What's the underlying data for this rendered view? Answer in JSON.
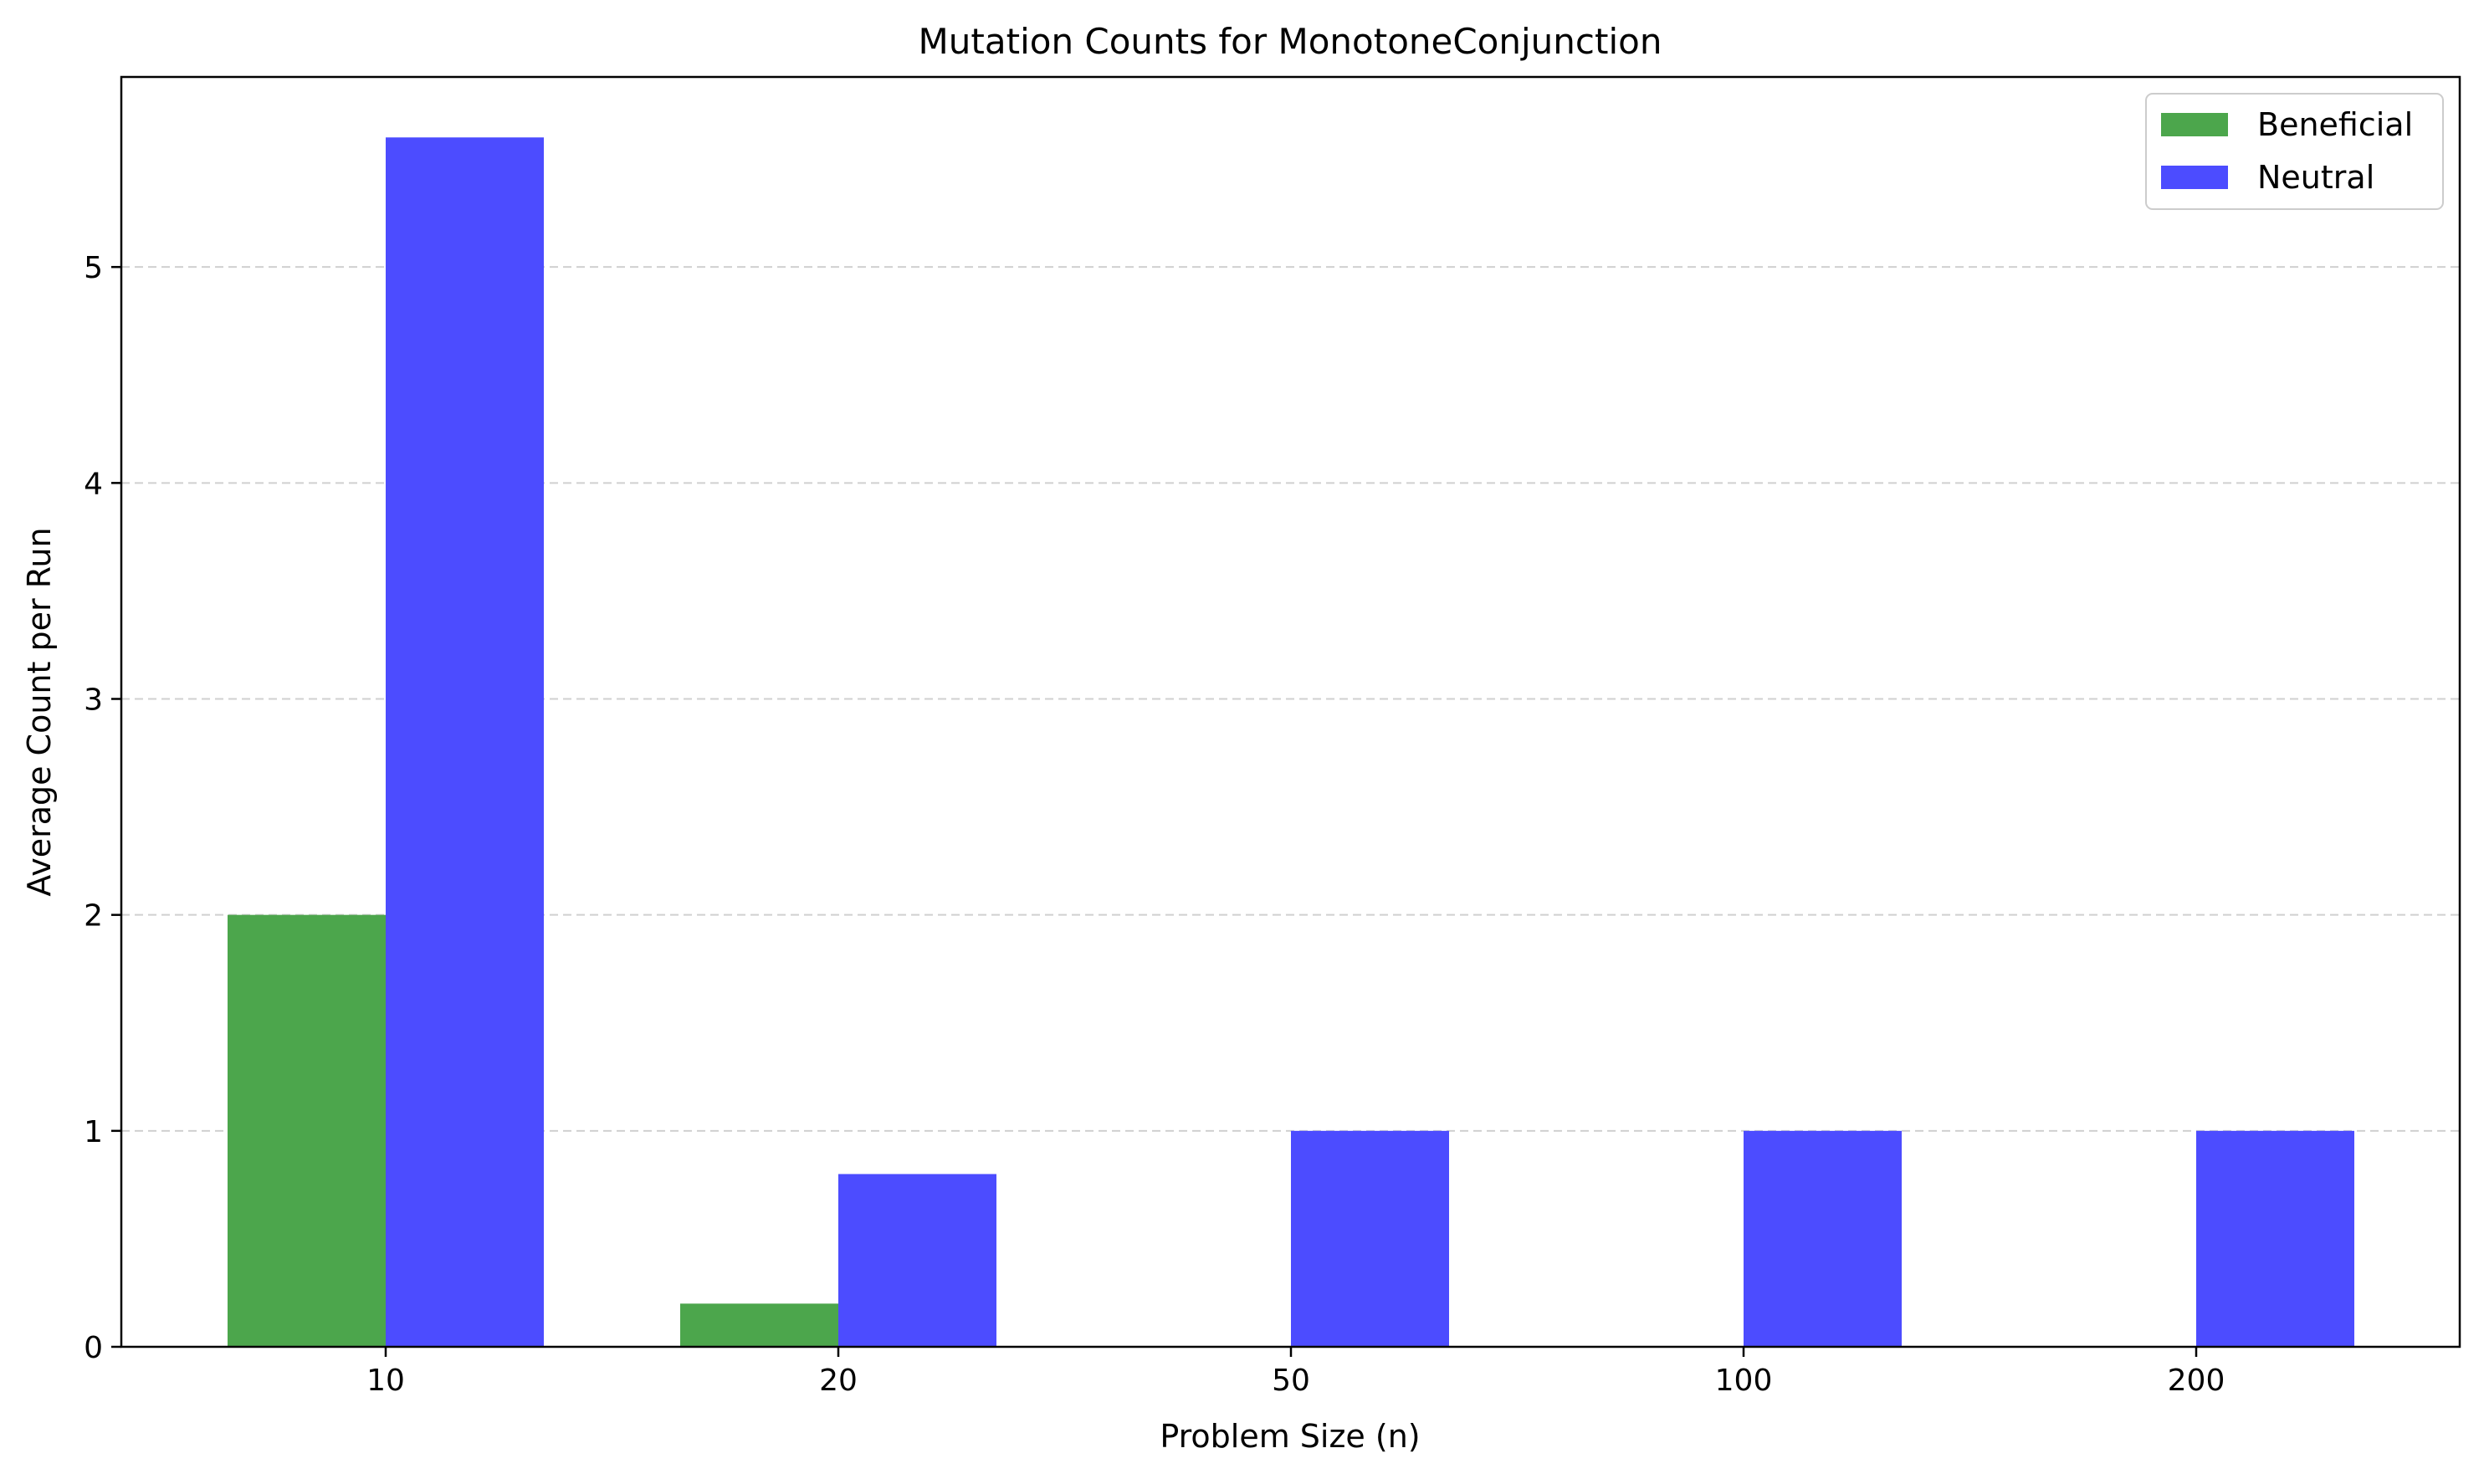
{
  "chart_data": {
    "type": "bar",
    "title": "Mutation Counts for MonotoneConjunction",
    "xlabel": "Problem Size (n)",
    "ylabel": "Average Count per Run",
    "categories": [
      "10",
      "20",
      "50",
      "100",
      "200"
    ],
    "series": [
      {
        "name": "Beneficial",
        "values": [
          2.0,
          0.2,
          0,
          0,
          0
        ],
        "color": "#4ca64c"
      },
      {
        "name": "Neutral",
        "values": [
          5.6,
          0.8,
          1.0,
          1.0,
          1.0
        ],
        "color": "#4c4cff"
      }
    ],
    "ylim": [
      0,
      5.88
    ],
    "yticks": [
      0,
      1,
      2,
      3,
      4,
      5
    ],
    "grid": "y-dashed",
    "legend_position": "top-right"
  }
}
